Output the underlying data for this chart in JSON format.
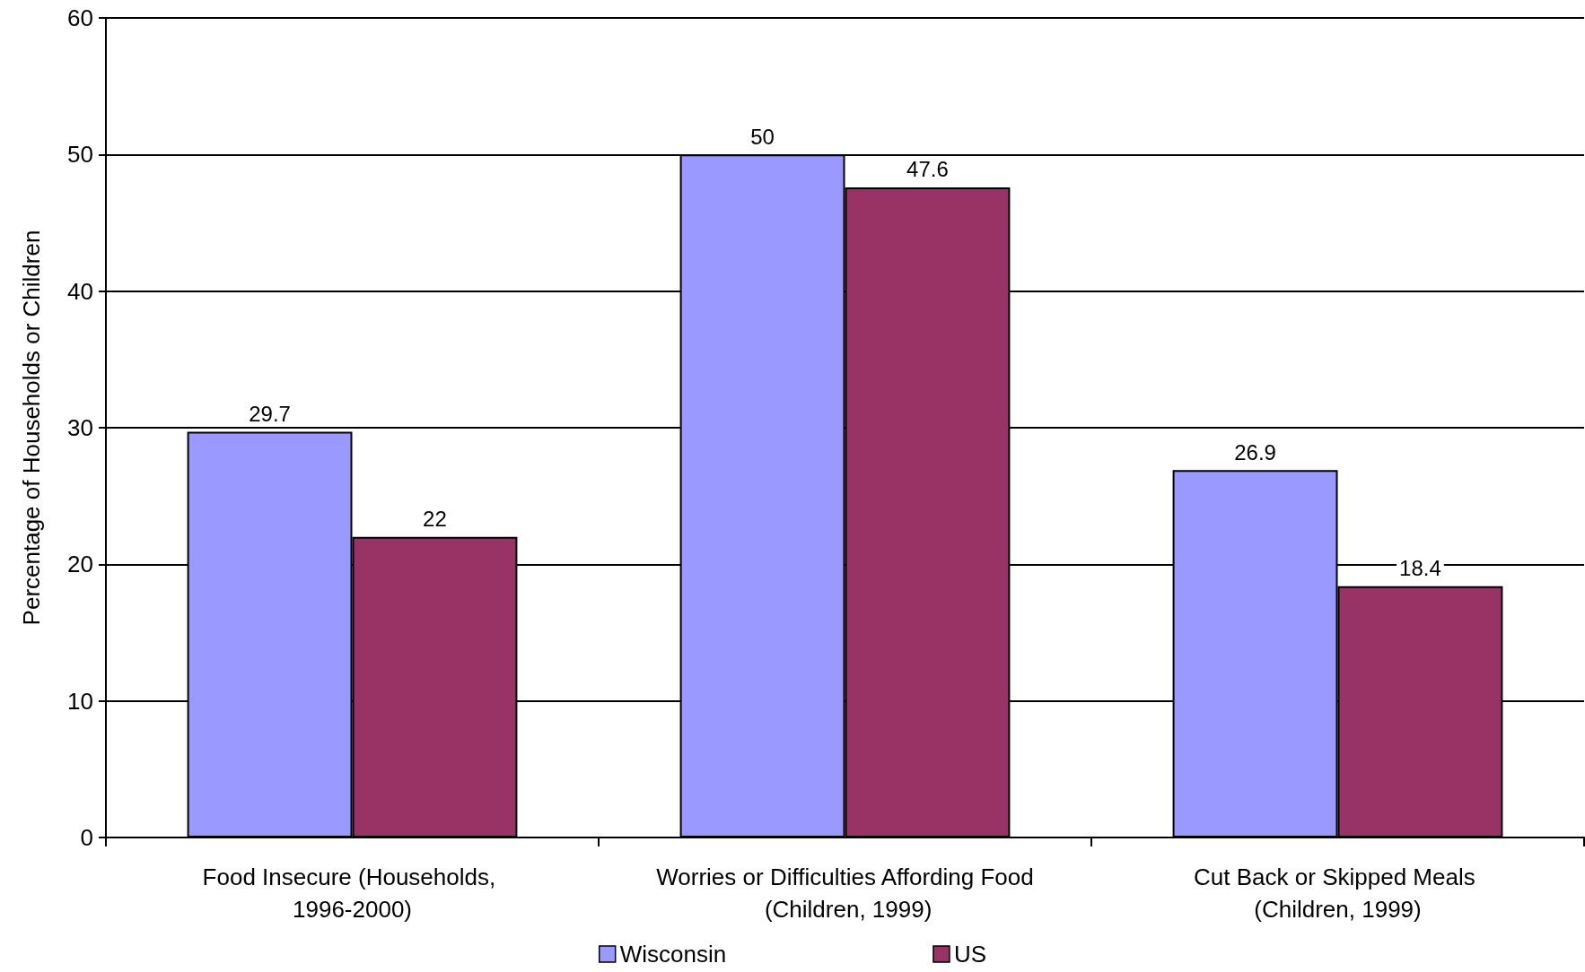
{
  "chart_data": {
    "type": "bar",
    "ylabel": "Percentage of Households or Children",
    "categories": [
      "Food Insecure (Households, 1996-2000)",
      "Worries or Difficulties Affording Food (Children, 1999)",
      "Cut Back or Skipped Meals (Children, 1999)"
    ],
    "series": [
      {
        "name": "Wisconsin",
        "color": "#9999ff",
        "values": [
          29.7,
          50,
          26.9
        ]
      },
      {
        "name": "US",
        "color": "#993366",
        "values": [
          22,
          47.6,
          18.4
        ]
      }
    ],
    "ylim": [
      0,
      60
    ],
    "yticks": [
      0,
      10,
      20,
      30,
      40,
      50,
      60
    ],
    "grid": "y",
    "legend": "bottom",
    "data_labels": true
  }
}
